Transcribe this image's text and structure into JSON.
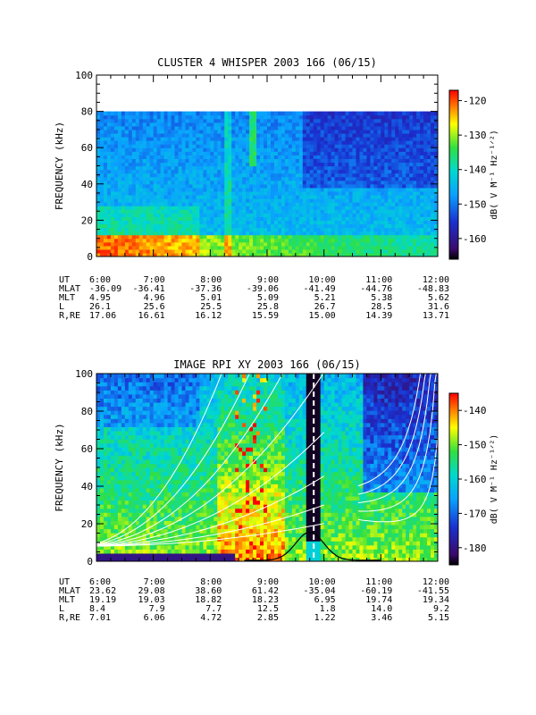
{
  "chart_data": [
    {
      "type": "heatmap",
      "title": "CLUSTER 4 WHISPER 2003 166 (06/15)",
      "ylabel": "FREQUENCY (kHz)",
      "ylim": [
        0,
        100
      ],
      "yticks": [
        0,
        20,
        40,
        60,
        80,
        100
      ],
      "data_top_khz": 80,
      "xlim_hours": [
        6,
        12
      ],
      "xticks": [
        "6:00",
        "7:00",
        "8:00",
        "9:00",
        "10:00",
        "11:00",
        "12:00"
      ],
      "colorbar": {
        "label": "dB( V M⁻¹ Hz⁻¹ᐟ²)",
        "range": [
          -166,
          -117
        ],
        "ticks": [
          -160,
          -150,
          -140,
          -130,
          -120
        ]
      },
      "ephemeris": [
        {
          "label": "UT",
          "values": [
            "6:00",
            "7:00",
            "8:00",
            "9:00",
            "10:00",
            "11:00",
            "12:00"
          ]
        },
        {
          "label": "MLAT",
          "values": [
            "-36.09",
            "-36.41",
            "-37.36",
            "-39.06",
            "-41.49",
            "-44.76",
            "-48.83"
          ]
        },
        {
          "label": "MLT",
          "values": [
            "4.95",
            "4.96",
            "5.01",
            "5.09",
            "5.21",
            "5.38",
            "5.62"
          ]
        },
        {
          "label": "L",
          "values": [
            "26.1",
            "25.6",
            "25.5",
            "25.8",
            "26.7",
            "28.5",
            "31.6"
          ]
        },
        {
          "label": "R,RE",
          "values": [
            "17.06",
            "16.61",
            "16.12",
            "15.59",
            "15.00",
            "14.39",
            "13.71"
          ]
        }
      ]
    },
    {
      "type": "heatmap",
      "title": "IMAGE RPI XY 2003 166 (06/15)",
      "ylabel": "FREQUENCY (kHz)",
      "ylim": [
        0,
        100
      ],
      "yticks": [
        0,
        20,
        40,
        60,
        80,
        100
      ],
      "xlim_hours": [
        6,
        12
      ],
      "xticks": [
        "6:00",
        "7:00",
        "8:00",
        "9:00",
        "10:00",
        "11:00",
        "12:00"
      ],
      "colorbar": {
        "label": "dB( V M⁻¹ Hz⁻¹ᐟ²)",
        "range": [
          -185,
          -135
        ],
        "ticks": [
          -180,
          -170,
          -160,
          -150,
          -140
        ]
      },
      "plasma_curve_peak": {
        "hour": 9.75,
        "khz": 15
      },
      "ephemeris": [
        {
          "label": "UT",
          "values": [
            "6:00",
            "7:00",
            "8:00",
            "9:00",
            "10:00",
            "11:00",
            "12:00"
          ]
        },
        {
          "label": "MLAT",
          "values": [
            "23.62",
            "29.08",
            "38.60",
            "61.42",
            "-35.04",
            "-60.19",
            "-41.55"
          ]
        },
        {
          "label": "MLT",
          "values": [
            "19.19",
            "19.03",
            "18.82",
            "18.23",
            "6.95",
            "19.74",
            "19.34"
          ]
        },
        {
          "label": "L",
          "values": [
            "8.4",
            "7.9",
            "7.7",
            "12.5",
            "1.8",
            "14.0",
            "9.2"
          ]
        },
        {
          "label": "R,RE",
          "values": [
            "7.01",
            "6.06",
            "4.72",
            "2.85",
            "1.22",
            "3.46",
            "5.15"
          ]
        }
      ]
    }
  ]
}
